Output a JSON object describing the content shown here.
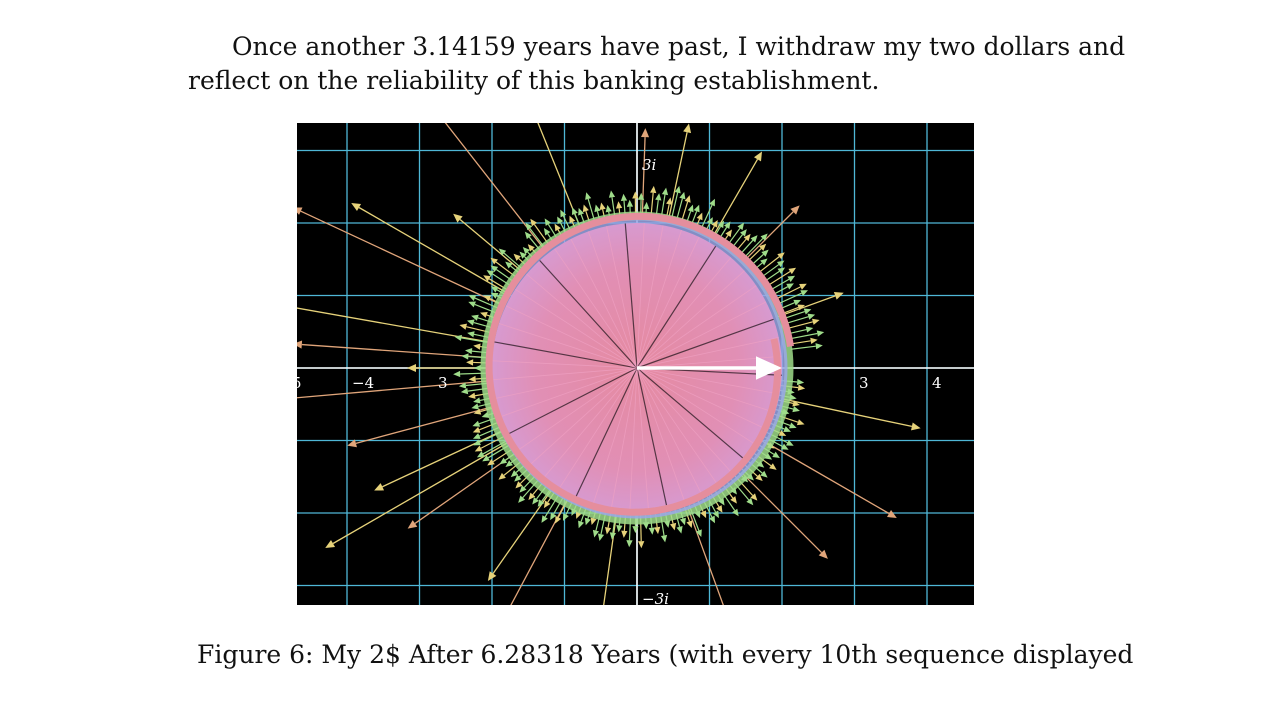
{
  "paragraph": {
    "line1": "Once another 3.14159 years have past, I withdraw my two dollars and",
    "line2": "reflect on the reliability of this banking establishment."
  },
  "figure": {
    "axis_labels": {
      "x_neg5": "5",
      "x_neg4": "−4",
      "x_neg3": "3",
      "x_pos3": "3",
      "x_pos4": "4",
      "y_pos3i": "3i",
      "y_neg3i": "−3i"
    },
    "colors": {
      "background": "#000000",
      "grid": "#4fb7d6",
      "axis": "#ffffff",
      "disc": "#e38fb0",
      "rim": "#e58e9d",
      "fringe_green": "#9fdc8a",
      "fringe_blue": "#9aa7e8",
      "arrow_yellow": "#e6d27a",
      "arrow_orange": "#e0a57a",
      "main_arrow": "#ffffff"
    }
  },
  "caption": {
    "text": "Figure 6: My 2$ After 6.28318 Years (with every 10th sequence displayed"
  }
}
